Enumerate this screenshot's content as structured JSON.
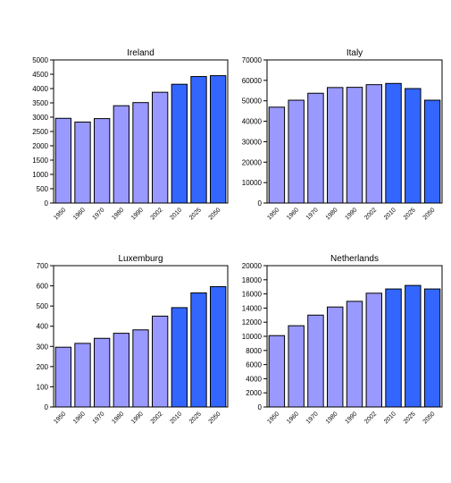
{
  "colors": {
    "historical_bar": "#9999ff",
    "projection_bar": "#3366ff",
    "bar_border": "#000000",
    "plot_background": "#ffffff"
  },
  "chart_data": [
    {
      "type": "bar",
      "title": "Ireland",
      "categories": [
        "1950",
        "1960",
        "1970",
        "1980",
        "1990",
        "2002",
        "2010",
        "2025",
        "2050"
      ],
      "values": [
        2960,
        2830,
        2950,
        3400,
        3510,
        3870,
        4150,
        4420,
        4450
      ],
      "projection_start_index": 6,
      "ylim": [
        0,
        5000
      ],
      "yticks": [
        "0",
        "500",
        "1000",
        "1500",
        "2000",
        "2500",
        "3000",
        "3500",
        "4000",
        "4500",
        "5000"
      ],
      "grid": false
    },
    {
      "type": "bar",
      "title": "Italy",
      "categories": [
        "1950",
        "1960",
        "1970",
        "1980",
        "1990",
        "2002",
        "2010",
        "2025",
        "2050"
      ],
      "values": [
        46900,
        50300,
        53700,
        56500,
        56600,
        57900,
        58500,
        56000,
        50300
      ],
      "projection_start_index": 6,
      "ylim": [
        0,
        70000
      ],
      "yticks": [
        "0",
        "10000",
        "20000",
        "30000",
        "40000",
        "50000",
        "60000",
        "70000"
      ],
      "grid": false
    },
    {
      "type": "bar",
      "title": "Luxemburg",
      "categories": [
        "1950",
        "1960",
        "1970",
        "1980",
        "1990",
        "2002",
        "2010",
        "2025",
        "2050"
      ],
      "values": [
        296,
        315,
        340,
        365,
        382,
        450,
        492,
        565,
        596
      ],
      "projection_start_index": 6,
      "ylim": [
        0,
        700
      ],
      "yticks": [
        "0",
        "100",
        "200",
        "300",
        "400",
        "500",
        "600",
        "700"
      ],
      "grid": false
    },
    {
      "type": "bar",
      "title": "Netherlands",
      "categories": [
        "1950",
        "1960",
        "1970",
        "1980",
        "1990",
        "2002",
        "2010",
        "2025",
        "2050"
      ],
      "values": [
        10100,
        11500,
        13000,
        14150,
        14950,
        16100,
        16700,
        17200,
        16700
      ],
      "projection_start_index": 6,
      "ylim": [
        0,
        20000
      ],
      "yticks": [
        "0",
        "2000",
        "4000",
        "6000",
        "8000",
        "10000",
        "12000",
        "14000",
        "16000",
        "18000",
        "20000"
      ],
      "grid": false
    }
  ]
}
